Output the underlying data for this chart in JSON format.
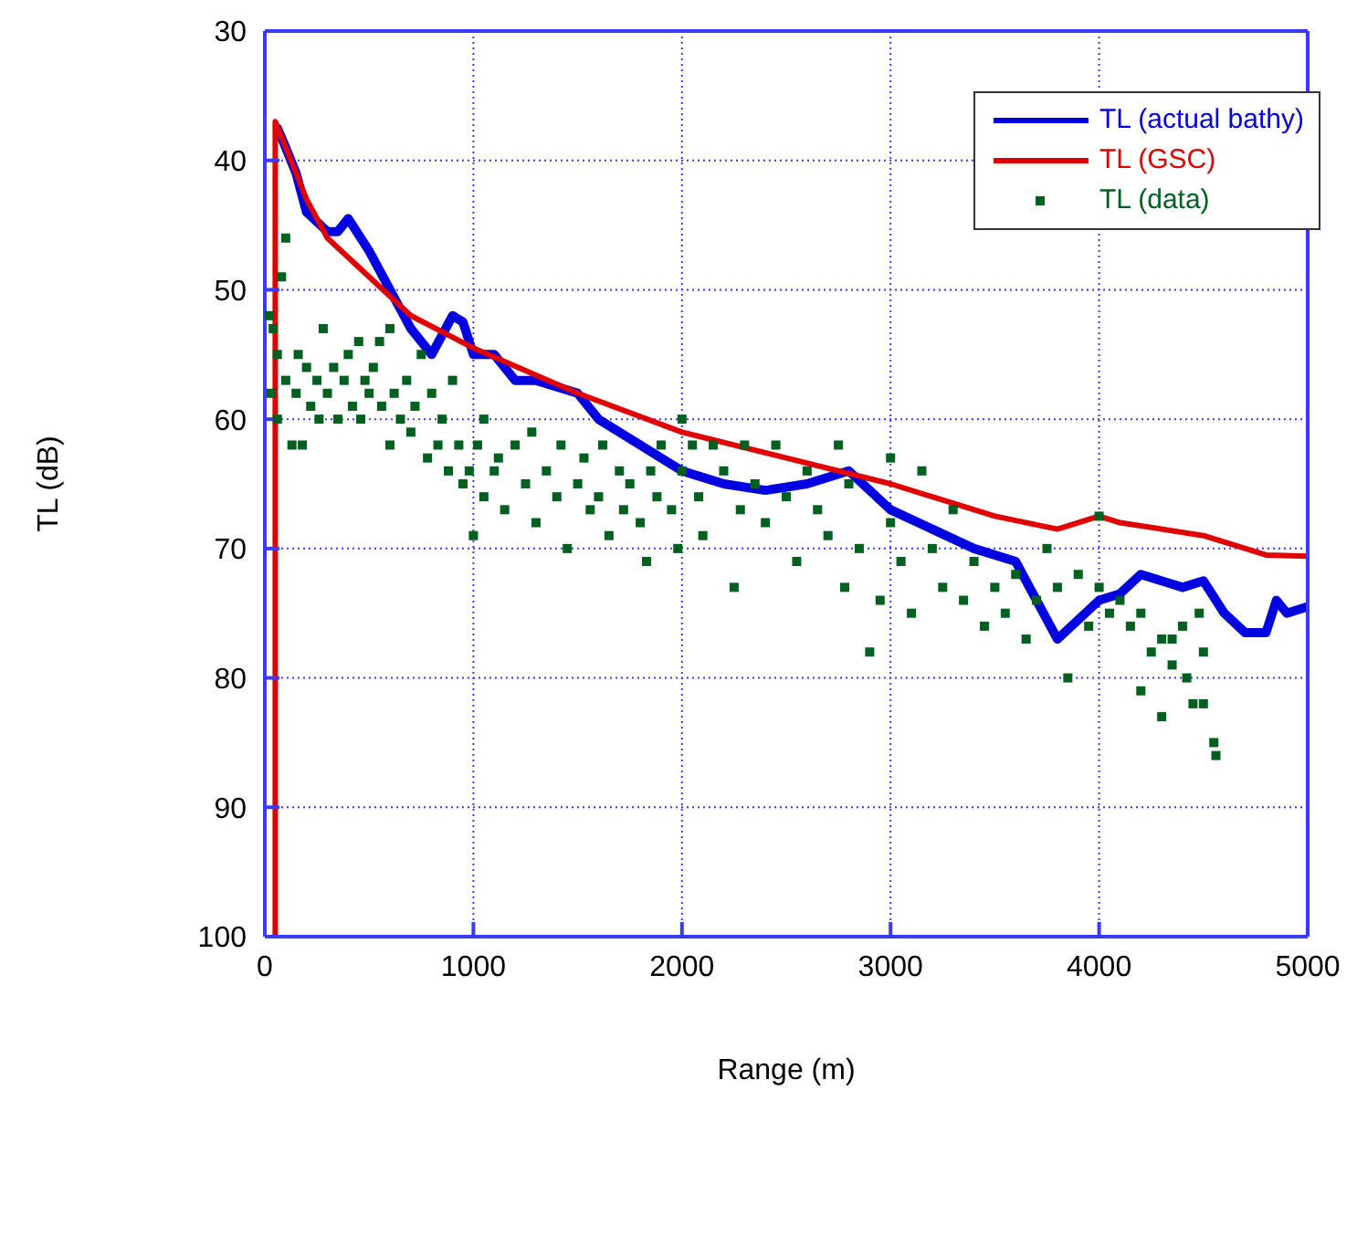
{
  "chart_data": {
    "type": "line",
    "xlabel": "Range (m)",
    "ylabel": "TL (dB)",
    "xlim": [
      0,
      5000
    ],
    "xticks": [
      0,
      1000,
      2000,
      3000,
      4000,
      5000
    ],
    "ylim": [
      100,
      30
    ],
    "yticks": [
      30,
      40,
      50,
      60,
      70,
      80,
      90,
      100
    ],
    "grid": true,
    "legend": "top right",
    "line_style": "solid",
    "series": [
      {
        "name": "TL (actual bathy)",
        "color": "#0000e0",
        "x": [
          60,
          100,
          150,
          200,
          300,
          350,
          400,
          500,
          600,
          700,
          800,
          900,
          950,
          1000,
          1100,
          1200,
          1300,
          1500,
          1600,
          1800,
          2000,
          2200,
          2400,
          2600,
          2800,
          2900,
          3000,
          3200,
          3400,
          3600,
          3700,
          3800,
          3900,
          4000,
          4100,
          4200,
          4400,
          4500,
          4600,
          4700,
          4800,
          4850,
          4900,
          5000
        ],
        "values": [
          37.5,
          39,
          41,
          44,
          45.5,
          45.5,
          44.5,
          47,
          50,
          53,
          55,
          52,
          52.5,
          55,
          55,
          57,
          57,
          58,
          60,
          62,
          64,
          65,
          65.5,
          65,
          64,
          65.5,
          67,
          68.5,
          70,
          71,
          74,
          77,
          75.5,
          74,
          73.5,
          72,
          73,
          72.5,
          75,
          76.5,
          76.5,
          74,
          75,
          74.5
        ]
      },
      {
        "name": "TL (GSC)",
        "color": "#e00000",
        "x": [
          50,
          50,
          100,
          200,
          300,
          500,
          700,
          1000,
          1500,
          2000,
          2500,
          3000,
          3500,
          3800,
          4000,
          4100,
          4500,
          4800,
          5000
        ],
        "values": [
          100,
          37,
          39,
          43,
          46,
          49,
          52,
          54.5,
          58,
          61,
          63,
          65,
          67.5,
          68.5,
          67.5,
          68,
          69,
          70.5,
          70.6
        ]
      },
      {
        "name": "TL (data)",
        "type": "scatter",
        "marker": "square",
        "color": "#006020",
        "x": [
          20,
          30,
          40,
          60,
          60,
          80,
          100,
          100,
          130,
          150,
          160,
          180,
          200,
          220,
          250,
          260,
          280,
          300,
          330,
          350,
          380,
          400,
          420,
          450,
          460,
          480,
          500,
          520,
          550,
          560,
          600,
          600,
          620,
          650,
          680,
          700,
          720,
          750,
          780,
          800,
          830,
          850,
          880,
          900,
          930,
          950,
          980,
          1000,
          1020,
          1050,
          1050,
          1100,
          1120,
          1150,
          1200,
          1250,
          1280,
          1300,
          1350,
          1400,
          1420,
          1450,
          1500,
          1530,
          1560,
          1600,
          1620,
          1650,
          1700,
          1720,
          1750,
          1800,
          1830,
          1850,
          1880,
          1900,
          1950,
          1980,
          2000,
          2000,
          2050,
          2080,
          2100,
          2150,
          2200,
          2250,
          2280,
          2300,
          2350,
          2400,
          2450,
          2500,
          2550,
          2600,
          2650,
          2700,
          2750,
          2780,
          2800,
          2850,
          2900,
          2950,
          3000,
          3000,
          3050,
          3100,
          3150,
          3200,
          3250,
          3300,
          3350,
          3400,
          3450,
          3500,
          3550,
          3600,
          3650,
          3700,
          3750,
          3800,
          3850,
          3900,
          3950,
          4000,
          4000,
          4050,
          4100,
          4150,
          4200,
          4200,
          4250,
          4300,
          4300,
          4350,
          4350,
          4400,
          4420,
          4450,
          4480,
          4500,
          4500,
          4550,
          4560
        ],
        "values": [
          52,
          58,
          53,
          55,
          60,
          49,
          46,
          57,
          62,
          58,
          55,
          62,
          56,
          59,
          57,
          60,
          53,
          58,
          56,
          60,
          57,
          55,
          59,
          54,
          60,
          57,
          58,
          56,
          54,
          59,
          53,
          62,
          58,
          60,
          57,
          61,
          59,
          55,
          63,
          58,
          62,
          60,
          64,
          57,
          62,
          65,
          64,
          69,
          62,
          60,
          66,
          64,
          63,
          67,
          62,
          65,
          61,
          68,
          64,
          66,
          62,
          70,
          65,
          63,
          67,
          66,
          62,
          69,
          64,
          67,
          65,
          68,
          71,
          64,
          66,
          62,
          67,
          70,
          64,
          60,
          62,
          66,
          69,
          62,
          64,
          73,
          67,
          62,
          65,
          68,
          62,
          66,
          71,
          64,
          67,
          69,
          62,
          73,
          65,
          70,
          78,
          74,
          68,
          63,
          71,
          75,
          64,
          70,
          73,
          67,
          74,
          71,
          76,
          73,
          75,
          72,
          77,
          74,
          70,
          73,
          80,
          72,
          76,
          67.5,
          73,
          75,
          74,
          76,
          75,
          81,
          78,
          83,
          77,
          79,
          77,
          76,
          80,
          82,
          75,
          78,
          82,
          85,
          86
        ]
      }
    ]
  }
}
